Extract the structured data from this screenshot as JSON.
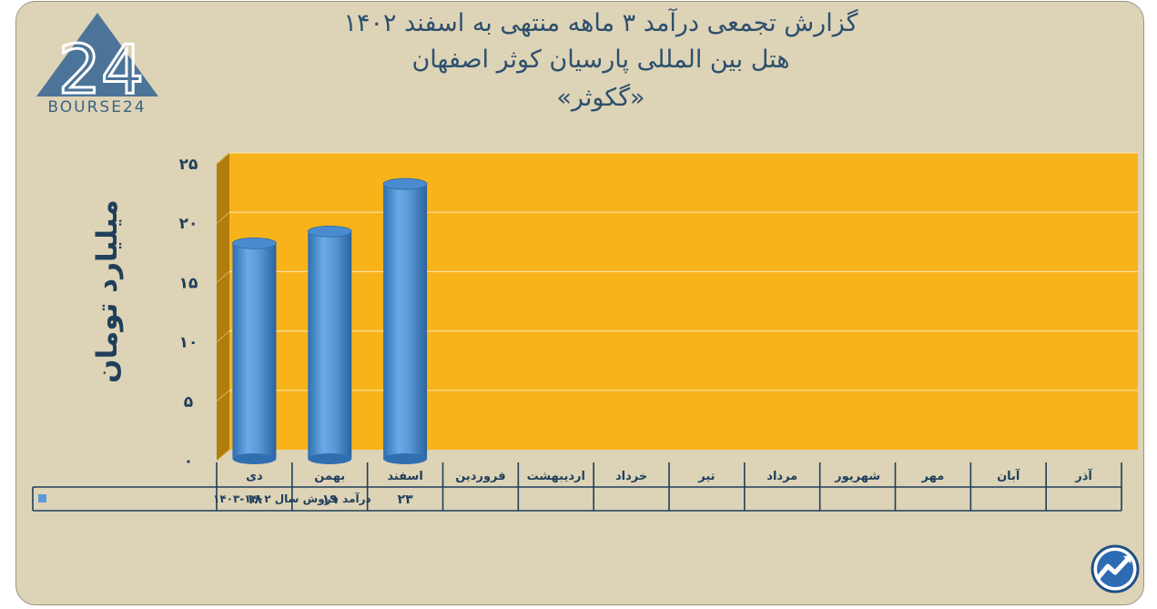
{
  "header": {
    "title_line1": "گزارش تجمعی درآمد ۳ ماهه منتهی به اسفند ۱۴۰۲",
    "title_line2": "هتل بین المللی پارسیان کوثر اصفهان",
    "title_line3": "«گکوثر»"
  },
  "logo": {
    "mark": "24",
    "text": "BOURSE24"
  },
  "colors": {
    "background": "#ddd3b6",
    "plot_area": "#f8b31b",
    "plot_side_wall": "#b07d0e",
    "bar": "#5a9ad9",
    "axis_text": "#1f3f5b"
  },
  "icons": [
    "bourse24-logo",
    "trend-chart-icon"
  ],
  "chart_data": {
    "type": "bar",
    "ylabel": "میلیارد تومان",
    "ylim": [
      0,
      25
    ],
    "yticks": [
      "۰",
      "۵",
      "۱۰",
      "۱۵",
      "۲۰",
      "۲۵"
    ],
    "ytick_values": [
      0,
      5,
      10,
      15,
      20,
      25
    ],
    "categories": [
      "دی",
      "بهمن",
      "اسفند",
      "فروردین",
      "اردیبهشت",
      "خرداد",
      "تیر",
      "مرداد",
      "شهریور",
      "مهر",
      "آبان",
      "آذر"
    ],
    "series": [
      {
        "name": "درآمد فروش سال ۱۴۰۲-۱۴۰۳",
        "values": [
          18,
          19,
          23,
          null,
          null,
          null,
          null,
          null,
          null,
          null,
          null,
          null
        ],
        "value_labels": [
          "۱۸",
          "۱۹",
          "۲۳",
          "",
          "",
          "",
          "",
          "",
          "",
          "",
          "",
          ""
        ]
      }
    ],
    "grid": true,
    "legend": "data-table"
  }
}
